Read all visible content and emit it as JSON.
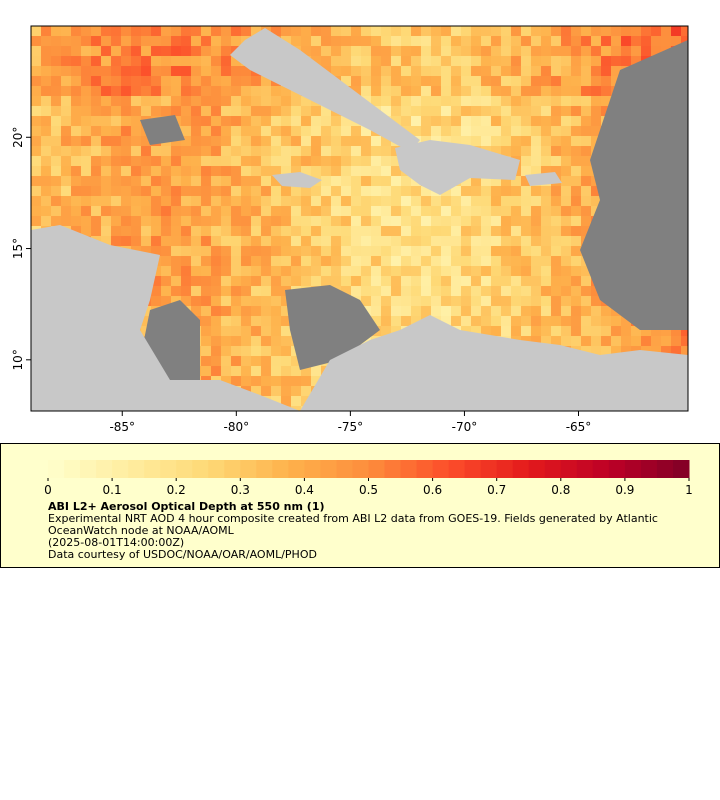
{
  "map": {
    "xlim": [
      -89,
      -60.2
    ],
    "ylim": [
      7.7,
      25
    ],
    "xticks": [
      {
        "value": -85,
        "label": "-85°"
      },
      {
        "value": -80,
        "label": "-80°"
      },
      {
        "value": -75,
        "label": "-75°"
      },
      {
        "value": -70,
        "label": "-70°"
      },
      {
        "value": -65,
        "label": "-65°"
      }
    ],
    "yticks": [
      {
        "value": 10,
        "label": "10°"
      },
      {
        "value": 15,
        "label": "15°"
      },
      {
        "value": 20,
        "label": "20°"
      }
    ]
  },
  "colorbar": {
    "lim": [
      0,
      1
    ],
    "ticks": [
      0,
      0.1,
      0.2,
      0.3,
      0.4,
      0.5,
      0.6,
      0.7,
      0.8,
      0.9,
      1
    ],
    "colors": [
      "#ffffcc",
      "#ffeda0",
      "#fed976",
      "#feb24c",
      "#fd8d3c",
      "#fc4e2a",
      "#e31a1c",
      "#bd0026",
      "#800026"
    ]
  },
  "caption": {
    "title": "ABI L2+ Aerosol Optical Depth at 550 nm (1)",
    "lines": [
      "Experimental NRT AOD 4 hour composite created from ABI L2 data from GOES-19. Fields generated by Atlantic OceanWatch node at NOAA/AOML",
      "(2025-08-01T14:00:00Z)",
      "Data courtesy of USDOC/NOAA/OAR/AOML/PHOD"
    ]
  }
}
